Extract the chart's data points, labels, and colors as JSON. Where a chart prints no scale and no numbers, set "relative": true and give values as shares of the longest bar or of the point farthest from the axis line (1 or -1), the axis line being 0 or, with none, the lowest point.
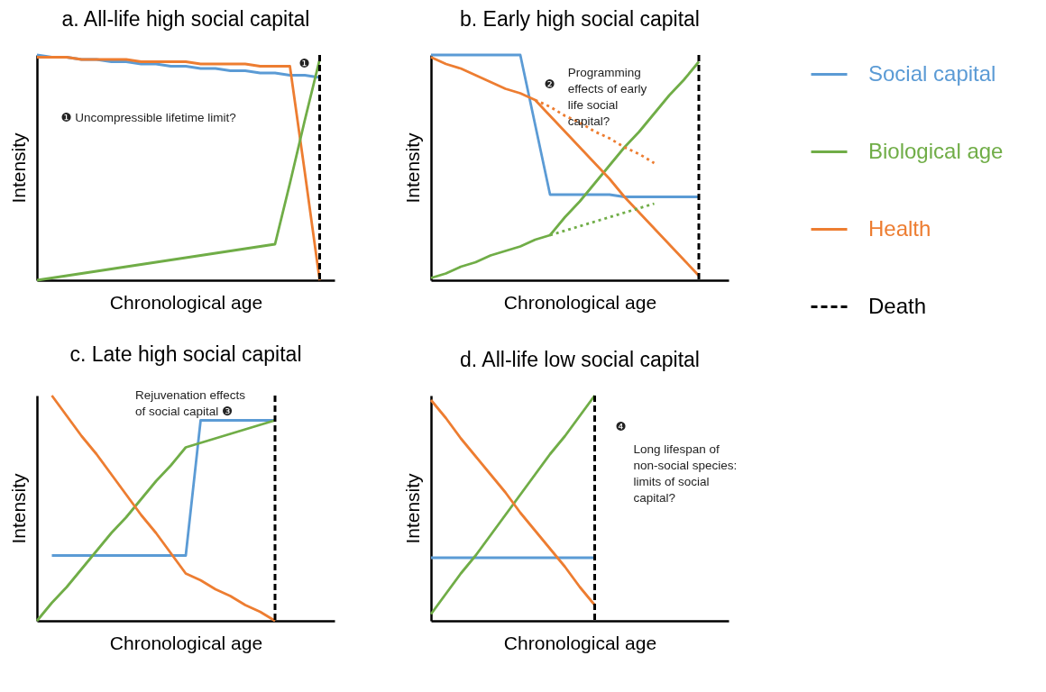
{
  "chart_data": [
    {
      "type": "line",
      "title": "a. All-life high social capital",
      "xlabel": "Chronological age",
      "ylabel": "Intensity",
      "relative": true,
      "categories": [
        null,
        null,
        null,
        null,
        null,
        null,
        null,
        null,
        null,
        null,
        null,
        null,
        null,
        null,
        null,
        null,
        null,
        null,
        null,
        null,
        null
      ],
      "series": [
        {
          "color": "#5b9bd5",
          "values": [
            1.0,
            0.99,
            0.99,
            0.98,
            0.98,
            0.97,
            0.97,
            0.96,
            0.96,
            0.95,
            0.95,
            0.94,
            0.94,
            0.93,
            0.93,
            0.92,
            0.92,
            0.91,
            0.91,
            0.9,
            null
          ]
        },
        {
          "color": "#ed7d31",
          "values": [
            0.99,
            0.99,
            0.99,
            0.98,
            0.98,
            0.98,
            0.98,
            0.97,
            0.97,
            0.97,
            0.97,
            0.96,
            0.96,
            0.96,
            0.96,
            0.95,
            0.95,
            0.95,
            0.48,
            0,
            null
          ]
        },
        {
          "color": "#70ad47",
          "values": [
            0,
            0.01,
            0.02,
            0.03,
            0.04,
            0.05,
            0.06,
            0.07,
            0.08,
            0.09,
            0.1,
            0.11,
            0.12,
            0.13,
            0.14,
            0.15,
            0.16,
            0.43,
            0.71,
            0.98,
            null
          ]
        }
      ],
      "ref_lines": [
        {
          "axis": "x",
          "color": "#000000",
          "line_style": "dashed"
        }
      ],
      "annotations": [
        "❶",
        "❶ Uncompressible lifetime limit?"
      ]
    },
    {
      "type": "line",
      "title": "b. Early high social capital",
      "xlabel": "Chronological age",
      "ylabel": "Intensity",
      "relative": true,
      "legend": "right",
      "categories": [
        null,
        null,
        null,
        null,
        null,
        null,
        null,
        null,
        null,
        null,
        null,
        null,
        null,
        null,
        null,
        null,
        null,
        null,
        null,
        null,
        null
      ],
      "series": [
        {
          "name": "Social capital",
          "color": "#5b9bd5",
          "values": [
            1,
            1,
            1,
            1,
            1,
            1,
            1,
            0.69,
            0.38,
            0.38,
            0.38,
            0.38,
            0.38,
            0.37,
            0.37,
            0.37,
            0.37,
            0.37,
            0.37,
            null,
            null
          ]
        },
        {
          "name": "Biological age",
          "color": "#70ad47",
          "values": [
            0.01,
            0.03,
            0.06,
            0.08,
            0.11,
            0.13,
            0.15,
            0.18,
            0.2,
            0.28,
            0.35,
            0.43,
            0.51,
            0.59,
            0.66,
            0.74,
            0.82,
            0.89,
            0.97,
            null,
            null
          ]
        },
        {
          "name": "Health",
          "color": "#ed7d31",
          "values": [
            0.99,
            0.96,
            0.94,
            0.91,
            0.88,
            0.85,
            0.83,
            0.8,
            0.73,
            0.66,
            0.59,
            0.52,
            0.45,
            0.37,
            0.3,
            0.23,
            0.16,
            0.09,
            0.02,
            null,
            null
          ]
        },
        {
          "color": "#ed7d31",
          "line_style": "dotted",
          "values": [
            null,
            null,
            null,
            null,
            null,
            null,
            null,
            0.8,
            0.77,
            0.73,
            0.7,
            0.66,
            0.63,
            0.59,
            0.56,
            0.52,
            null,
            null,
            null,
            null,
            null
          ]
        },
        {
          "color": "#70ad47",
          "line_style": "dotted",
          "values": [
            null,
            null,
            null,
            null,
            null,
            null,
            null,
            null,
            0.2,
            0.22,
            0.24,
            0.26,
            0.28,
            0.3,
            0.32,
            0.34,
            null,
            null,
            null,
            null,
            null
          ]
        }
      ],
      "ref_lines": [
        {
          "axis": "x",
          "label": "Death",
          "color": "#000000",
          "line_style": "dashed"
        }
      ],
      "annotations": [
        "❷",
        "Programming\neffects of early\nlife social\ncapital?"
      ]
    },
    {
      "type": "line",
      "title": "c. Late high social capital",
      "xlabel": "Chronological age",
      "ylabel": "Intensity",
      "relative": true,
      "categories": [
        null,
        null,
        null,
        null,
        null,
        null,
        null,
        null,
        null,
        null,
        null,
        null,
        null,
        null,
        null,
        null,
        null,
        null,
        null,
        null,
        null
      ],
      "series": [
        {
          "color": "#5b9bd5",
          "values": [
            null,
            0.29,
            0.29,
            0.29,
            0.29,
            0.29,
            0.29,
            0.29,
            0.29,
            0.29,
            0.29,
            0.89,
            0.89,
            0.89,
            0.89,
            0.89,
            0.89,
            null,
            null,
            null,
            null
          ]
        },
        {
          "color": "#70ad47",
          "values": [
            0,
            0.08,
            0.15,
            0.23,
            0.31,
            0.39,
            0.46,
            0.54,
            0.62,
            0.69,
            0.77,
            0.79,
            0.81,
            0.83,
            0.85,
            0.87,
            0.89,
            null,
            null,
            null,
            null
          ]
        },
        {
          "color": "#ed7d31",
          "values": [
            null,
            1,
            0.91,
            0.82,
            0.74,
            0.65,
            0.56,
            0.47,
            0.39,
            0.3,
            0.21,
            0.18,
            0.14,
            0.11,
            0.07,
            0.04,
            0,
            null,
            null,
            null,
            null
          ]
        }
      ],
      "ref_lines": [
        {
          "axis": "x",
          "color": "#000000",
          "line_style": "dashed"
        }
      ],
      "annotations": [
        "Rejuvenation effects\nof social capital ❸"
      ]
    },
    {
      "type": "line",
      "title": "d. All-life low social capital",
      "xlabel": "Chronological age",
      "ylabel": "Intensity",
      "relative": true,
      "categories": [
        null,
        null,
        null,
        null,
        null,
        null,
        null,
        null,
        null,
        null,
        null,
        null,
        null,
        null,
        null,
        null,
        null,
        null,
        null,
        null,
        null
      ],
      "series": [
        {
          "color": "#5b9bd5",
          "values": [
            0.28,
            0.28,
            0.28,
            0.28,
            0.28,
            0.28,
            0.28,
            0.28,
            0.28,
            0.28,
            0.28,
            0.28,
            null,
            null,
            null,
            null,
            null,
            null,
            null,
            null,
            null
          ]
        },
        {
          "color": "#70ad47",
          "values": [
            0.03,
            0.12,
            0.21,
            0.29,
            0.38,
            0.47,
            0.56,
            0.65,
            0.74,
            0.82,
            0.91,
            1,
            null,
            null,
            null,
            null,
            null,
            null,
            null,
            null,
            null
          ]
        },
        {
          "color": "#ed7d31",
          "values": [
            0.98,
            0.9,
            0.81,
            0.73,
            0.65,
            0.57,
            0.48,
            0.4,
            0.32,
            0.24,
            0.15,
            0.07,
            null,
            null,
            null,
            null,
            null,
            null,
            null,
            null,
            null
          ]
        }
      ],
      "ref_lines": [
        {
          "axis": "x",
          "color": "#000000",
          "line_style": "dashed"
        }
      ],
      "annotations": [
        "❹",
        "Long lifespan of\nnon-social species:\nlimits of social\ncapital?"
      ]
    }
  ]
}
